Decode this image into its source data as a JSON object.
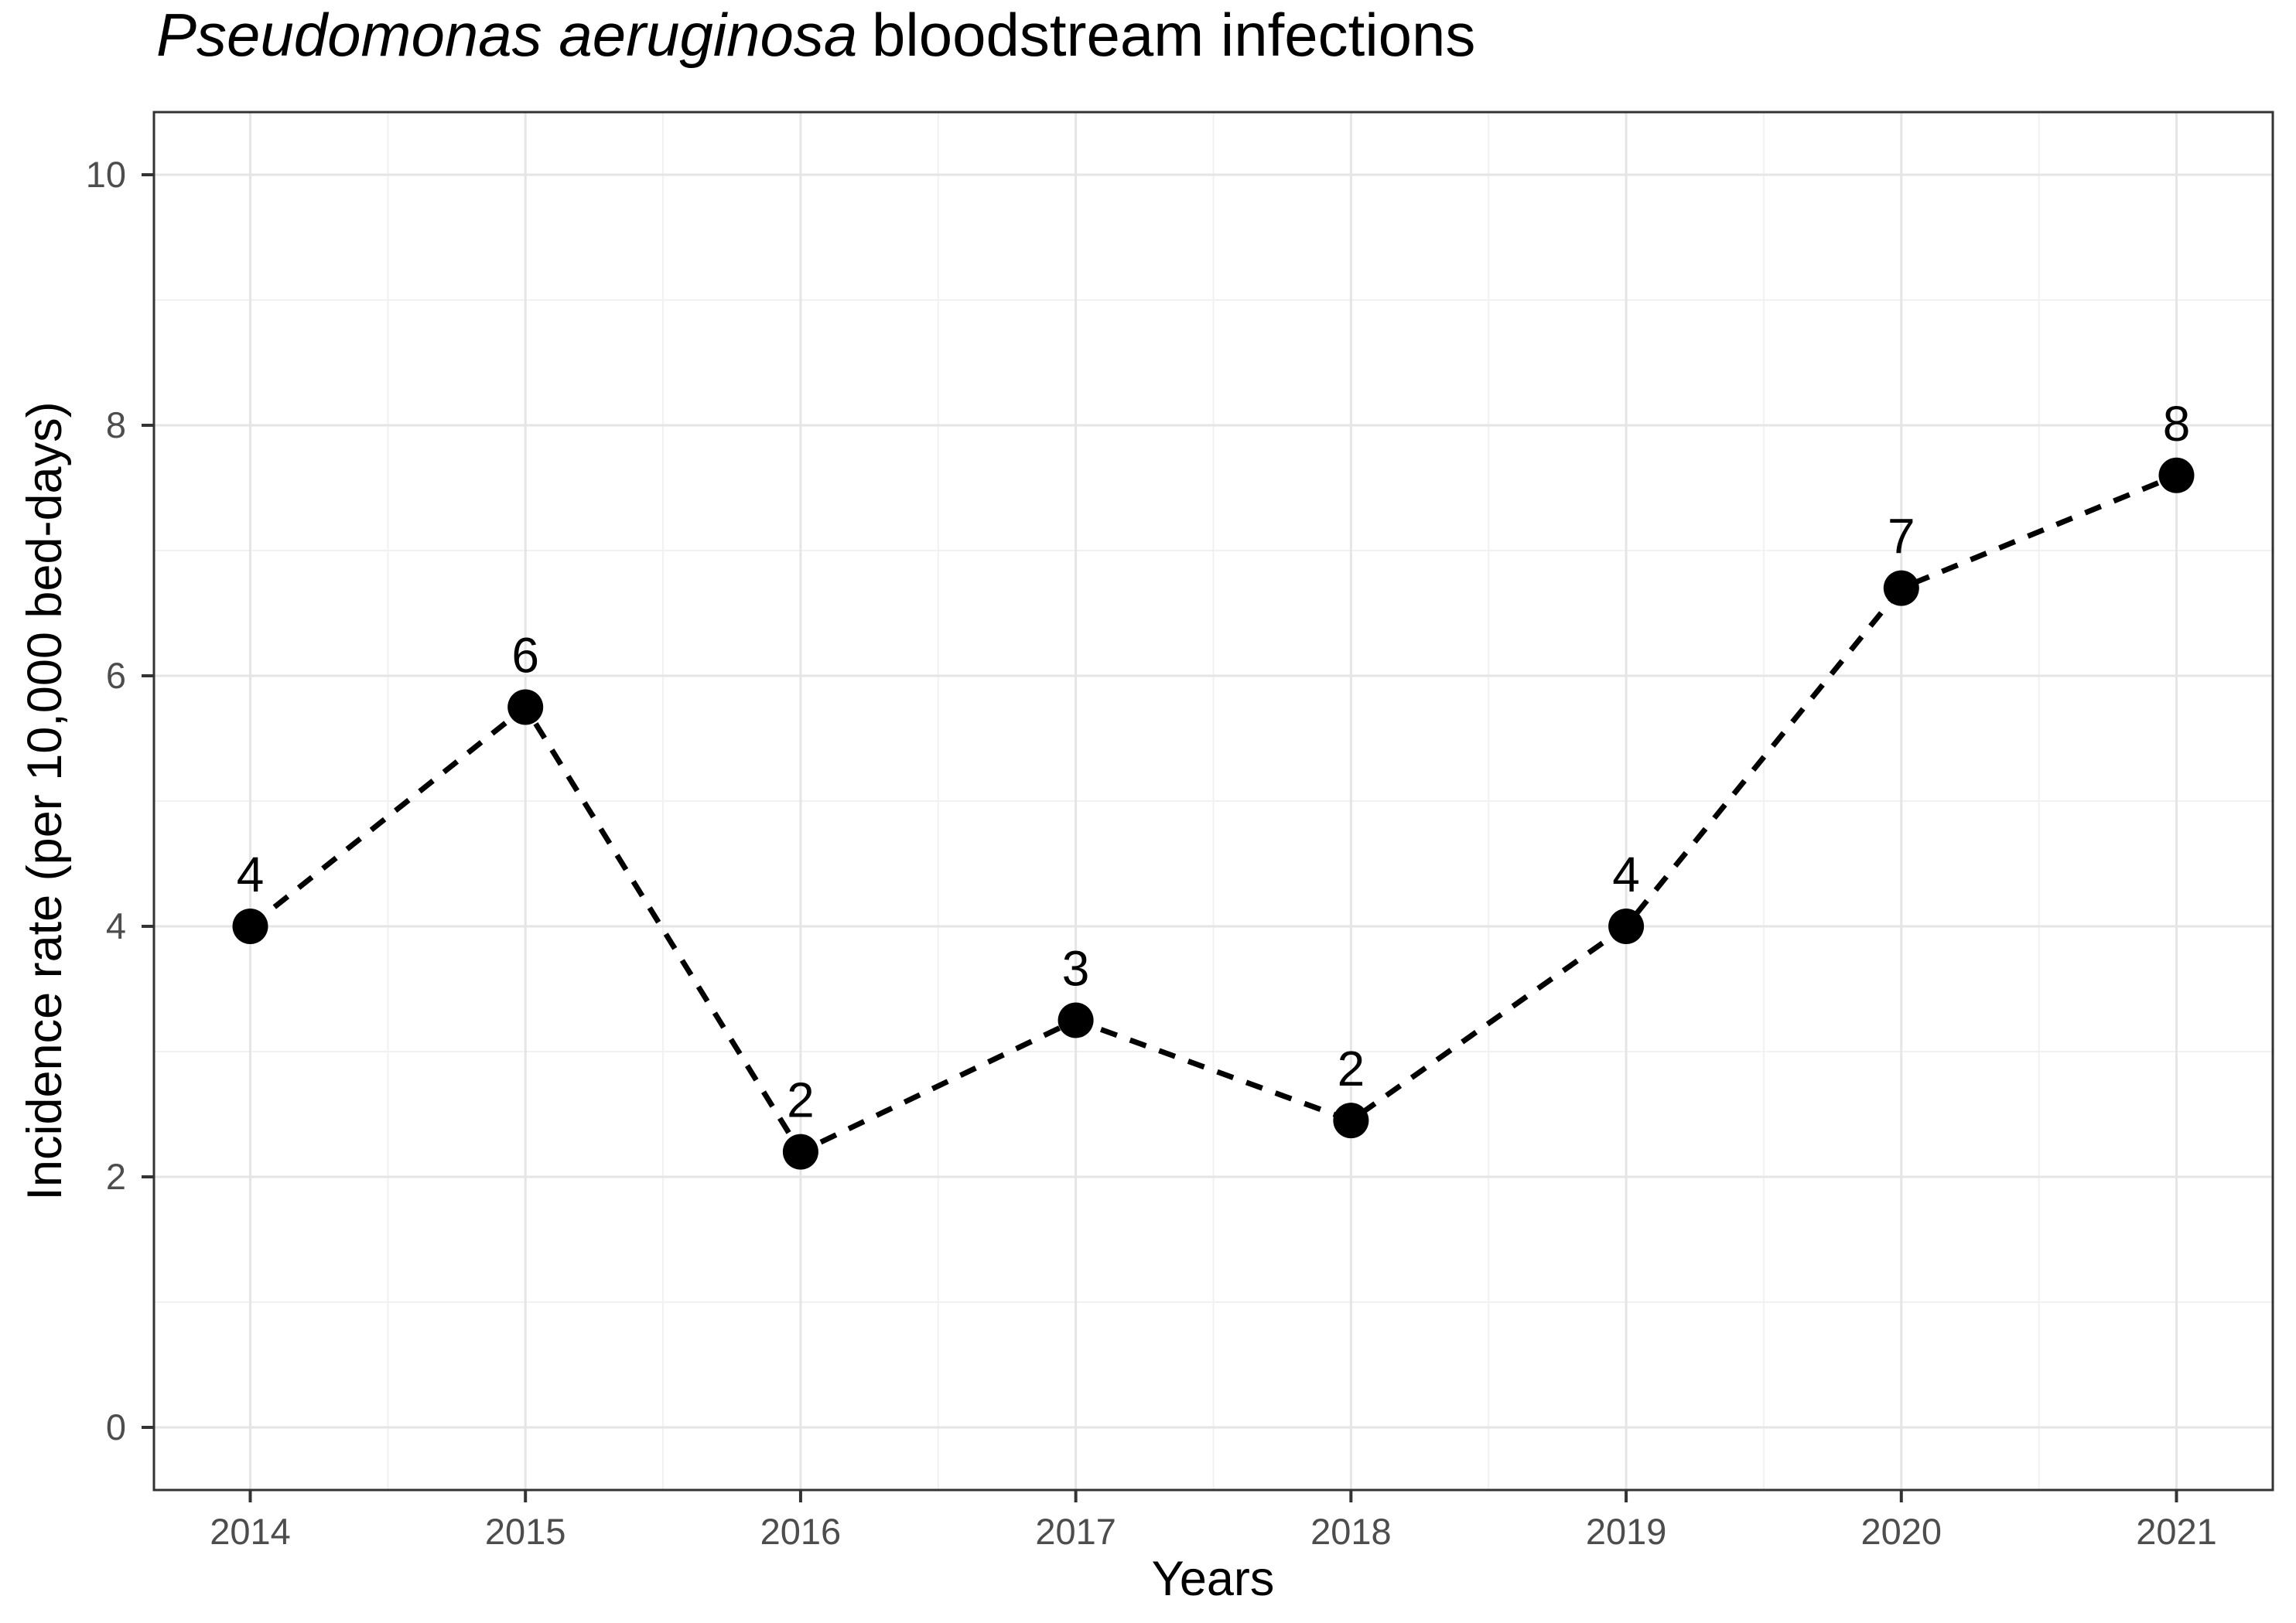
{
  "chart_data": {
    "type": "line",
    "title": "Pseudomonas aeruginosa bloodstream infections",
    "title_italic": "Pseudomonas aeruginosa",
    "title_regular": "bloodstream infections",
    "xlabel": "Years",
    "ylabel": "Incidence rate (per 10,000 bed-days)",
    "x": [
      2014,
      2015,
      2016,
      2017,
      2018,
      2019,
      2020,
      2021
    ],
    "x_tick_labels": [
      "2014",
      "2015",
      "2016",
      "2017",
      "2018",
      "2019",
      "2020",
      "2021"
    ],
    "series": [
      {
        "name": "Incidence rate",
        "values": [
          4.0,
          5.75,
          2.2,
          3.25,
          2.45,
          4.0,
          6.7,
          7.6
        ],
        "point_labels": [
          "4",
          "6",
          "2",
          "3",
          "2",
          "4",
          "7",
          "8"
        ],
        "line_style": "dashed",
        "marker": "filled-circle",
        "color": "#000000"
      }
    ],
    "xlim": [
      2013.65,
      2021.35
    ],
    "ylim": [
      -0.5,
      10.5
    ],
    "y_major_ticks": [
      0,
      2,
      4,
      6,
      8,
      10
    ],
    "y_minor_gridlines": [
      1,
      3,
      5,
      7,
      9
    ],
    "x_minor_gridlines": [
      2014.5,
      2015.5,
      2016.5,
      2017.5,
      2018.5,
      2019.5,
      2020.5
    ],
    "grid": "major+minor",
    "legend": "none",
    "panel_border": true,
    "colors": {
      "background": "#ffffff",
      "series": "#000000",
      "grid_major": "#e5e5e5",
      "grid_minor": "#f1f1f1",
      "panel_border": "#333333",
      "tick": "#333333",
      "tick_label": "#4d4d4d",
      "title": "#000000",
      "axis_title": "#000000"
    }
  }
}
